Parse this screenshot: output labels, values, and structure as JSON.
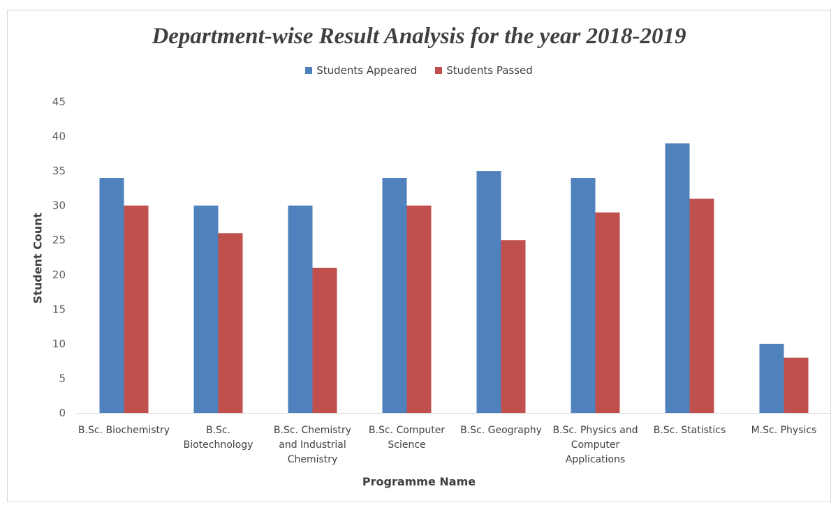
{
  "chart_data": {
    "type": "bar",
    "title": "Department-wise Result Analysis for the year 2018-2019",
    "xlabel": "Programme Name",
    "ylabel": "Student Count",
    "ylim": [
      0,
      45
    ],
    "yticks": [
      0,
      5,
      10,
      15,
      20,
      25,
      30,
      35,
      40,
      45
    ],
    "grid": false,
    "legend_position": "top",
    "categories": [
      "B.Sc. Biochemistry",
      "B.Sc. Biotechnology",
      "B.Sc. Chemistry and Industrial Chemistry",
      "B.Sc. Computer Science",
      "B.Sc. Geography",
      "B.Sc. Physics and Computer Applications",
      "B.Sc. Statistics",
      "M.Sc. Physics"
    ],
    "category_lines": [
      [
        "B.Sc. Biochemistry"
      ],
      [
        "B.Sc.",
        "Biotechnology"
      ],
      [
        "B.Sc. Chemistry",
        "and Industrial",
        "Chemistry"
      ],
      [
        "B.Sc. Computer",
        "Science"
      ],
      [
        "B.Sc. Geography"
      ],
      [
        "B.Sc. Physics and",
        "Computer",
        "Applications"
      ],
      [
        "B.Sc. Statistics"
      ],
      [
        "M.Sc. Physics"
      ]
    ],
    "series": [
      {
        "name": "Students Appeared",
        "color": "#4f81bd",
        "values": [
          34,
          30,
          30,
          34,
          35,
          34,
          39,
          10
        ]
      },
      {
        "name": "Students Passed",
        "color": "#c0504d",
        "values": [
          30,
          26,
          21,
          30,
          25,
          29,
          31,
          8
        ]
      }
    ]
  }
}
